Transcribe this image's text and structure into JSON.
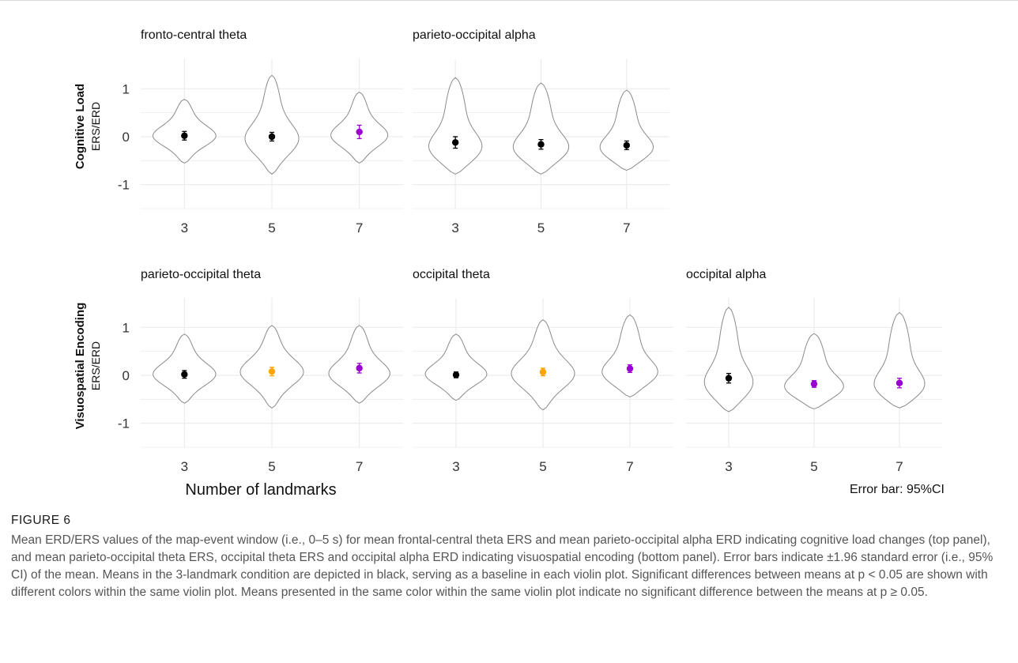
{
  "figure": {
    "label": "FIGURE 6",
    "caption": "Mean ERD/ERS values of the map-event window (i.e., 0–5 s) for mean frontal-central theta ERS and mean parieto-occipital alpha ERD indicating cognitive load changes (top panel), and mean parieto-occipital theta ERS, occipital theta ERS and occipital alpha ERD indicating visuospatial encoding (bottom panel). Error bars indicate ±1.96 standard error (i.e., 95% CI) of the mean. Means in the 3-landmark condition are depicted in black, serving as a baseline in each violin plot. Significant differences between means at p < 0.05 are shown with different colors within the same violin plot. Means presented in the same color within the same violin plot indicate no significant difference between the means at p ≥ 0.05."
  },
  "rows": [
    {
      "label": "Cognitive Load",
      "ylabel": "ERS/ERD"
    },
    {
      "label": "Visuospatial Encoding",
      "ylabel": "ERS/ERD"
    }
  ],
  "xlabel": "Number of landmarks",
  "error_note": "Error bar: 95%CI",
  "colors": {
    "baseline": "#000000",
    "orange": "#FFA500",
    "purple": "#9B00D3",
    "violin": "#8a8a8a",
    "grid": "#ebebeb"
  },
  "chart_data": [
    {
      "type": "violin",
      "title": "fronto-central theta",
      "row": 0,
      "categories": [
        "3",
        "5",
        "7"
      ],
      "yticks": [
        1,
        0,
        -1
      ],
      "ylim": [
        -1.5,
        1.45
      ],
      "means": [
        0.02,
        0.0,
        0.1
      ],
      "ci": [
        0.09,
        0.09,
        0.14
      ],
      "mean_colors": [
        "baseline",
        "baseline",
        "purple"
      ],
      "violins": [
        {
          "min": -0.55,
          "max": 0.78,
          "mode": 0.0,
          "width": 0.78
        },
        {
          "min": -0.78,
          "max": 1.28,
          "mode": -0.1,
          "width": 0.7
        },
        {
          "min": -0.55,
          "max": 0.93,
          "mode": 0.0,
          "width": 0.72
        }
      ]
    },
    {
      "type": "violin",
      "title": "parieto-occipital alpha",
      "row": 0,
      "categories": [
        "3",
        "5",
        "7"
      ],
      "yticks": [],
      "ylim": [
        -1.5,
        1.45
      ],
      "means": [
        -0.12,
        -0.16,
        -0.18
      ],
      "ci": [
        0.12,
        0.1,
        0.09
      ],
      "mean_colors": [
        "baseline",
        "baseline",
        "baseline"
      ],
      "violins": [
        {
          "min": -0.78,
          "max": 1.23,
          "mode": -0.3,
          "width": 0.78
        },
        {
          "min": -0.78,
          "max": 1.12,
          "mode": -0.3,
          "width": 0.8
        },
        {
          "min": -0.7,
          "max": 0.97,
          "mode": -0.3,
          "width": 0.78
        }
      ]
    },
    {
      "type": "violin",
      "title": "parieto-occipital theta",
      "row": 1,
      "categories": [
        "3",
        "5",
        "7"
      ],
      "yticks": [
        1,
        0,
        -1
      ],
      "ylim": [
        -1.5,
        1.45
      ],
      "means": [
        0.02,
        0.08,
        0.15
      ],
      "ci": [
        0.08,
        0.09,
        0.1
      ],
      "mean_colors": [
        "baseline",
        "orange",
        "purple"
      ],
      "violins": [
        {
          "min": -0.58,
          "max": 0.86,
          "mode": 0.0,
          "width": 0.78
        },
        {
          "min": -0.68,
          "max": 1.04,
          "mode": 0.05,
          "width": 0.78
        },
        {
          "min": -0.58,
          "max": 1.04,
          "mode": 0.0,
          "width": 0.78
        }
      ]
    },
    {
      "type": "violin",
      "title": "occipital theta",
      "row": 1,
      "categories": [
        "3",
        "5",
        "7"
      ],
      "yticks": [],
      "ylim": [
        -1.5,
        1.45
      ],
      "means": [
        0.01,
        0.07,
        0.14
      ],
      "ci": [
        0.06,
        0.08,
        0.08
      ],
      "mean_colors": [
        "baseline",
        "orange",
        "purple"
      ],
      "violins": [
        {
          "min": -0.52,
          "max": 0.86,
          "mode": 0.0,
          "width": 0.78
        },
        {
          "min": -0.72,
          "max": 1.16,
          "mode": 0.0,
          "width": 0.8
        },
        {
          "min": -0.45,
          "max": 1.26,
          "mode": 0.0,
          "width": 0.78
        }
      ]
    },
    {
      "type": "violin",
      "title": "occipital alpha",
      "row": 1,
      "categories": [
        "3",
        "5",
        "7"
      ],
      "yticks": [],
      "ylim": [
        -1.5,
        1.45
      ],
      "means": [
        -0.06,
        -0.18,
        -0.16
      ],
      "ci": [
        0.1,
        0.07,
        0.1
      ],
      "mean_colors": [
        "baseline",
        "purple",
        "purple"
      ],
      "violins": [
        {
          "min": -0.76,
          "max": 1.42,
          "mode": -0.25,
          "width": 0.72
        },
        {
          "min": -0.7,
          "max": 0.87,
          "mode": -0.3,
          "width": 0.85
        },
        {
          "min": -0.68,
          "max": 1.31,
          "mode": -0.3,
          "width": 0.8
        }
      ]
    }
  ]
}
